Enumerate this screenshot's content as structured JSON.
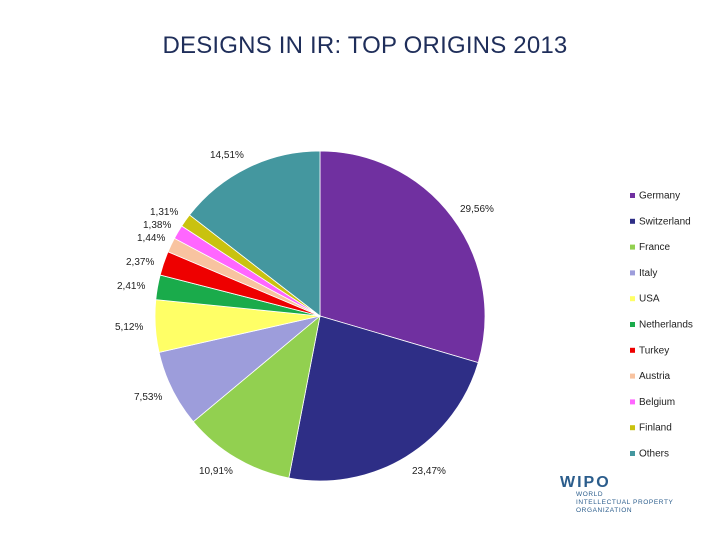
{
  "slide_title": "DESIGNS IN IR: TOP ORIGINS 2013",
  "logo": {
    "mark": "WIPO",
    "line1": "WORLD",
    "line2": "INTELLECTUAL PROPERTY",
    "line3": "ORGANIZATION",
    "color": "#2b5d8c"
  },
  "chart_data": {
    "type": "pie",
    "title": "DESIGNS IN IR: TOP ORIGINS 2013",
    "legend_position": "right",
    "slices": [
      {
        "name": "Germany",
        "value": 29.56,
        "label": "29,56%",
        "color": "#7030a0"
      },
      {
        "name": "Switzerland",
        "value": 23.47,
        "label": "23,47%",
        "color": "#2e2e86"
      },
      {
        "name": "France",
        "value": 10.91,
        "label": "10,91%",
        "color": "#92d050"
      },
      {
        "name": "Italy",
        "value": 7.53,
        "label": "7,53%",
        "color": "#9d9ddb"
      },
      {
        "name": "USA",
        "value": 5.12,
        "label": "5,12%",
        "color": "#ffff66"
      },
      {
        "name": "Netherlands",
        "value": 2.41,
        "label": "2,41%",
        "color": "#1aab4b"
      },
      {
        "name": "Turkey",
        "value": 2.37,
        "label": "2,37%",
        "color": "#ee0000"
      },
      {
        "name": "Austria",
        "value": 1.44,
        "label": "1,44%",
        "color": "#f8c3a0"
      },
      {
        "name": "Belgium",
        "value": 1.38,
        "label": "1,38%",
        "color": "#ff66ff"
      },
      {
        "name": "Finland",
        "value": 1.31,
        "label": "1,31%",
        "color": "#c9c20f"
      },
      {
        "name": "Others",
        "value": 14.51,
        "label": "14,51%",
        "color": "#44979f"
      }
    ]
  }
}
